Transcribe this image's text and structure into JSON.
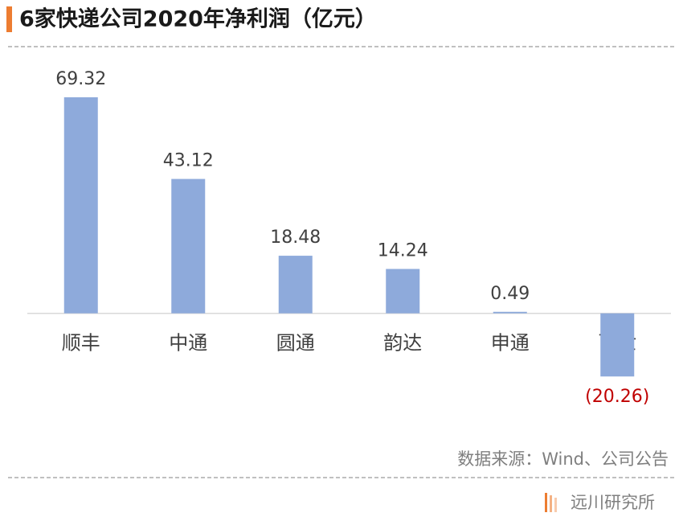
{
  "chart_data": {
    "type": "bar",
    "title": "6家快递公司2020年净利润（亿元）",
    "categories": [
      "顺丰",
      "中通",
      "圆通",
      "韵达",
      "申通",
      "百世"
    ],
    "values": [
      69.32,
      43.12,
      18.48,
      14.24,
      0.49,
      -20.26
    ],
    "value_labels": [
      "69.32",
      "43.12",
      "18.48",
      "14.24",
      "0.49",
      "(20.26)"
    ],
    "color": "#8eaadb",
    "negative_label_color": "#c00000",
    "ylim": [
      -30,
      80
    ],
    "source": "数据来源：Wind、公司公告",
    "brand": "远川研究所"
  }
}
